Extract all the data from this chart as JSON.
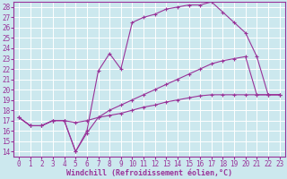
{
  "xlabel": "Windchill (Refroidissement éolien,°C)",
  "bg_color": "#cce8ee",
  "line_color": "#993399",
  "xlim": [
    -0.5,
    23.5
  ],
  "ylim": [
    13.5,
    28.5
  ],
  "xticks": [
    0,
    1,
    2,
    3,
    4,
    5,
    6,
    7,
    8,
    9,
    10,
    11,
    12,
    13,
    14,
    15,
    16,
    17,
    18,
    19,
    20,
    21,
    22,
    23
  ],
  "yticks": [
    14,
    15,
    16,
    17,
    18,
    19,
    20,
    21,
    22,
    23,
    24,
    25,
    26,
    27,
    28
  ],
  "lines": [
    {
      "x": [
        0,
        1,
        2,
        3,
        4,
        5,
        6,
        7,
        8,
        9,
        10,
        11,
        12,
        13,
        14,
        15,
        16,
        17,
        18,
        19,
        20,
        21,
        22,
        23
      ],
      "y": [
        17.3,
        16.5,
        16.5,
        17.0,
        17.0,
        16.8,
        17.0,
        17.3,
        17.5,
        17.7,
        18.0,
        18.3,
        18.5,
        18.8,
        19.0,
        19.2,
        19.4,
        19.5,
        19.5,
        19.5,
        19.5,
        19.5,
        19.5,
        19.5
      ]
    },
    {
      "x": [
        0,
        1,
        2,
        3,
        4,
        5,
        6,
        7,
        8,
        9,
        10,
        11,
        12,
        13,
        14,
        15,
        16,
        17,
        18,
        19,
        20,
        21,
        22,
        23
      ],
      "y": [
        17.3,
        16.5,
        16.5,
        17.0,
        17.0,
        14.0,
        15.8,
        17.3,
        18.0,
        18.5,
        19.0,
        19.5,
        20.0,
        20.5,
        21.0,
        21.5,
        22.0,
        22.5,
        22.8,
        23.0,
        23.2,
        19.5,
        19.5,
        19.5
      ]
    },
    {
      "x": [
        0,
        1,
        2,
        3,
        4,
        5,
        6,
        7,
        8,
        9,
        10,
        11,
        12,
        13,
        14,
        15,
        16,
        17,
        18,
        19,
        20,
        21,
        22,
        23
      ],
      "y": [
        17.3,
        16.5,
        16.5,
        17.0,
        17.0,
        14.0,
        16.0,
        21.8,
        23.5,
        22.0,
        26.5,
        27.0,
        27.3,
        27.8,
        28.0,
        28.2,
        28.2,
        28.5,
        27.5,
        26.5,
        25.5,
        23.2,
        19.5,
        19.5
      ]
    }
  ],
  "xlabel_fontsize": 6,
  "tick_fontsize": 5.5
}
